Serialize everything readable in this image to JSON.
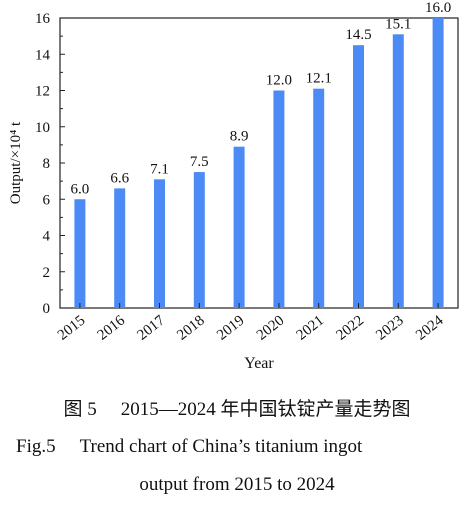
{
  "chart_data": {
    "type": "bar",
    "categories": [
      "2015",
      "2016",
      "2017",
      "2018",
      "2019",
      "2020",
      "2021",
      "2022",
      "2023",
      "2024"
    ],
    "values": [
      6.0,
      6.6,
      7.1,
      7.5,
      8.9,
      12.0,
      12.1,
      14.5,
      15.1,
      16.0
    ],
    "value_labels": [
      "6.0",
      "6.6",
      "7.1",
      "7.5",
      "8.9",
      "12.0",
      "12.1",
      "14.5",
      "15.1",
      "16.0"
    ],
    "xlabel": "Year",
    "ylabel": "Output/×10⁴ t",
    "ylim": [
      0,
      16
    ],
    "yticks": [
      0,
      2,
      4,
      6,
      8,
      10,
      12,
      14,
      16
    ],
    "grid": false,
    "bar_color": "#4C8BF5"
  },
  "caption": {
    "cn_num": "图 5",
    "cn_text": "2015—2024 年中国钛锭产量走势图",
    "en_num": "Fig.5",
    "en_text_line1": "Trend chart of China’s titanium ingot",
    "en_text_line2": "output from 2015 to 2024"
  }
}
